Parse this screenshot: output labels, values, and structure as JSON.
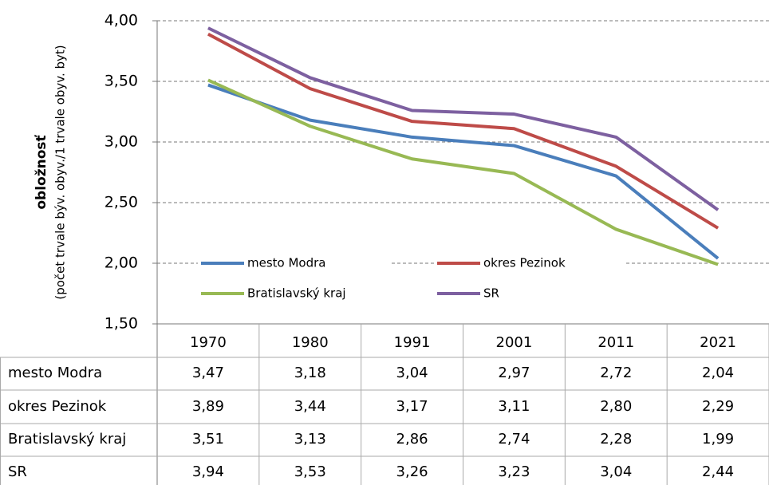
{
  "chart_data": {
    "type": "line",
    "y_label": "obložnosť",
    "y_sublabel": "(počet trvale býv. obyv./1 trvale obyv. byt)",
    "categories": [
      "1970",
      "1980",
      "1991",
      "2001",
      "2011",
      "2021"
    ],
    "series": [
      {
        "name": "mesto Modra",
        "color": "#4a7ebb",
        "values": [
          3.47,
          3.18,
          3.04,
          2.97,
          2.72,
          2.04
        ],
        "value_labels": [
          "3,47",
          "3,18",
          "3,04",
          "2,97",
          "2,72",
          "2,04"
        ]
      },
      {
        "name": "okres Pezinok",
        "color": "#be4b48",
        "values": [
          3.89,
          3.44,
          3.17,
          3.11,
          2.8,
          2.29
        ],
        "value_labels": [
          "3,89",
          "3,44",
          "3,17",
          "3,11",
          "2,80",
          "2,29"
        ]
      },
      {
        "name": "Bratislavský kraj",
        "color": "#98b954",
        "values": [
          3.51,
          3.13,
          2.86,
          2.74,
          2.28,
          1.99
        ],
        "value_labels": [
          "3,51",
          "3,13",
          "2,86",
          "2,74",
          "2,28",
          "1,99"
        ]
      },
      {
        "name": "SR",
        "color": "#7d60a0",
        "values": [
          3.94,
          3.53,
          3.26,
          3.23,
          3.04,
          2.44
        ],
        "value_labels": [
          "3,94",
          "3,53",
          "3,26",
          "3,23",
          "3,04",
          "2,44"
        ]
      }
    ],
    "ylim": [
      1.5,
      4.0
    ],
    "yticks": [
      {
        "value": 1.5,
        "label": "1,50"
      },
      {
        "value": 2.0,
        "label": "2,00"
      },
      {
        "value": 2.5,
        "label": "2,50"
      },
      {
        "value": 3.0,
        "label": "3,00"
      },
      {
        "value": 3.5,
        "label": "3,50"
      },
      {
        "value": 4.0,
        "label": "4,00"
      }
    ],
    "grid": true
  }
}
